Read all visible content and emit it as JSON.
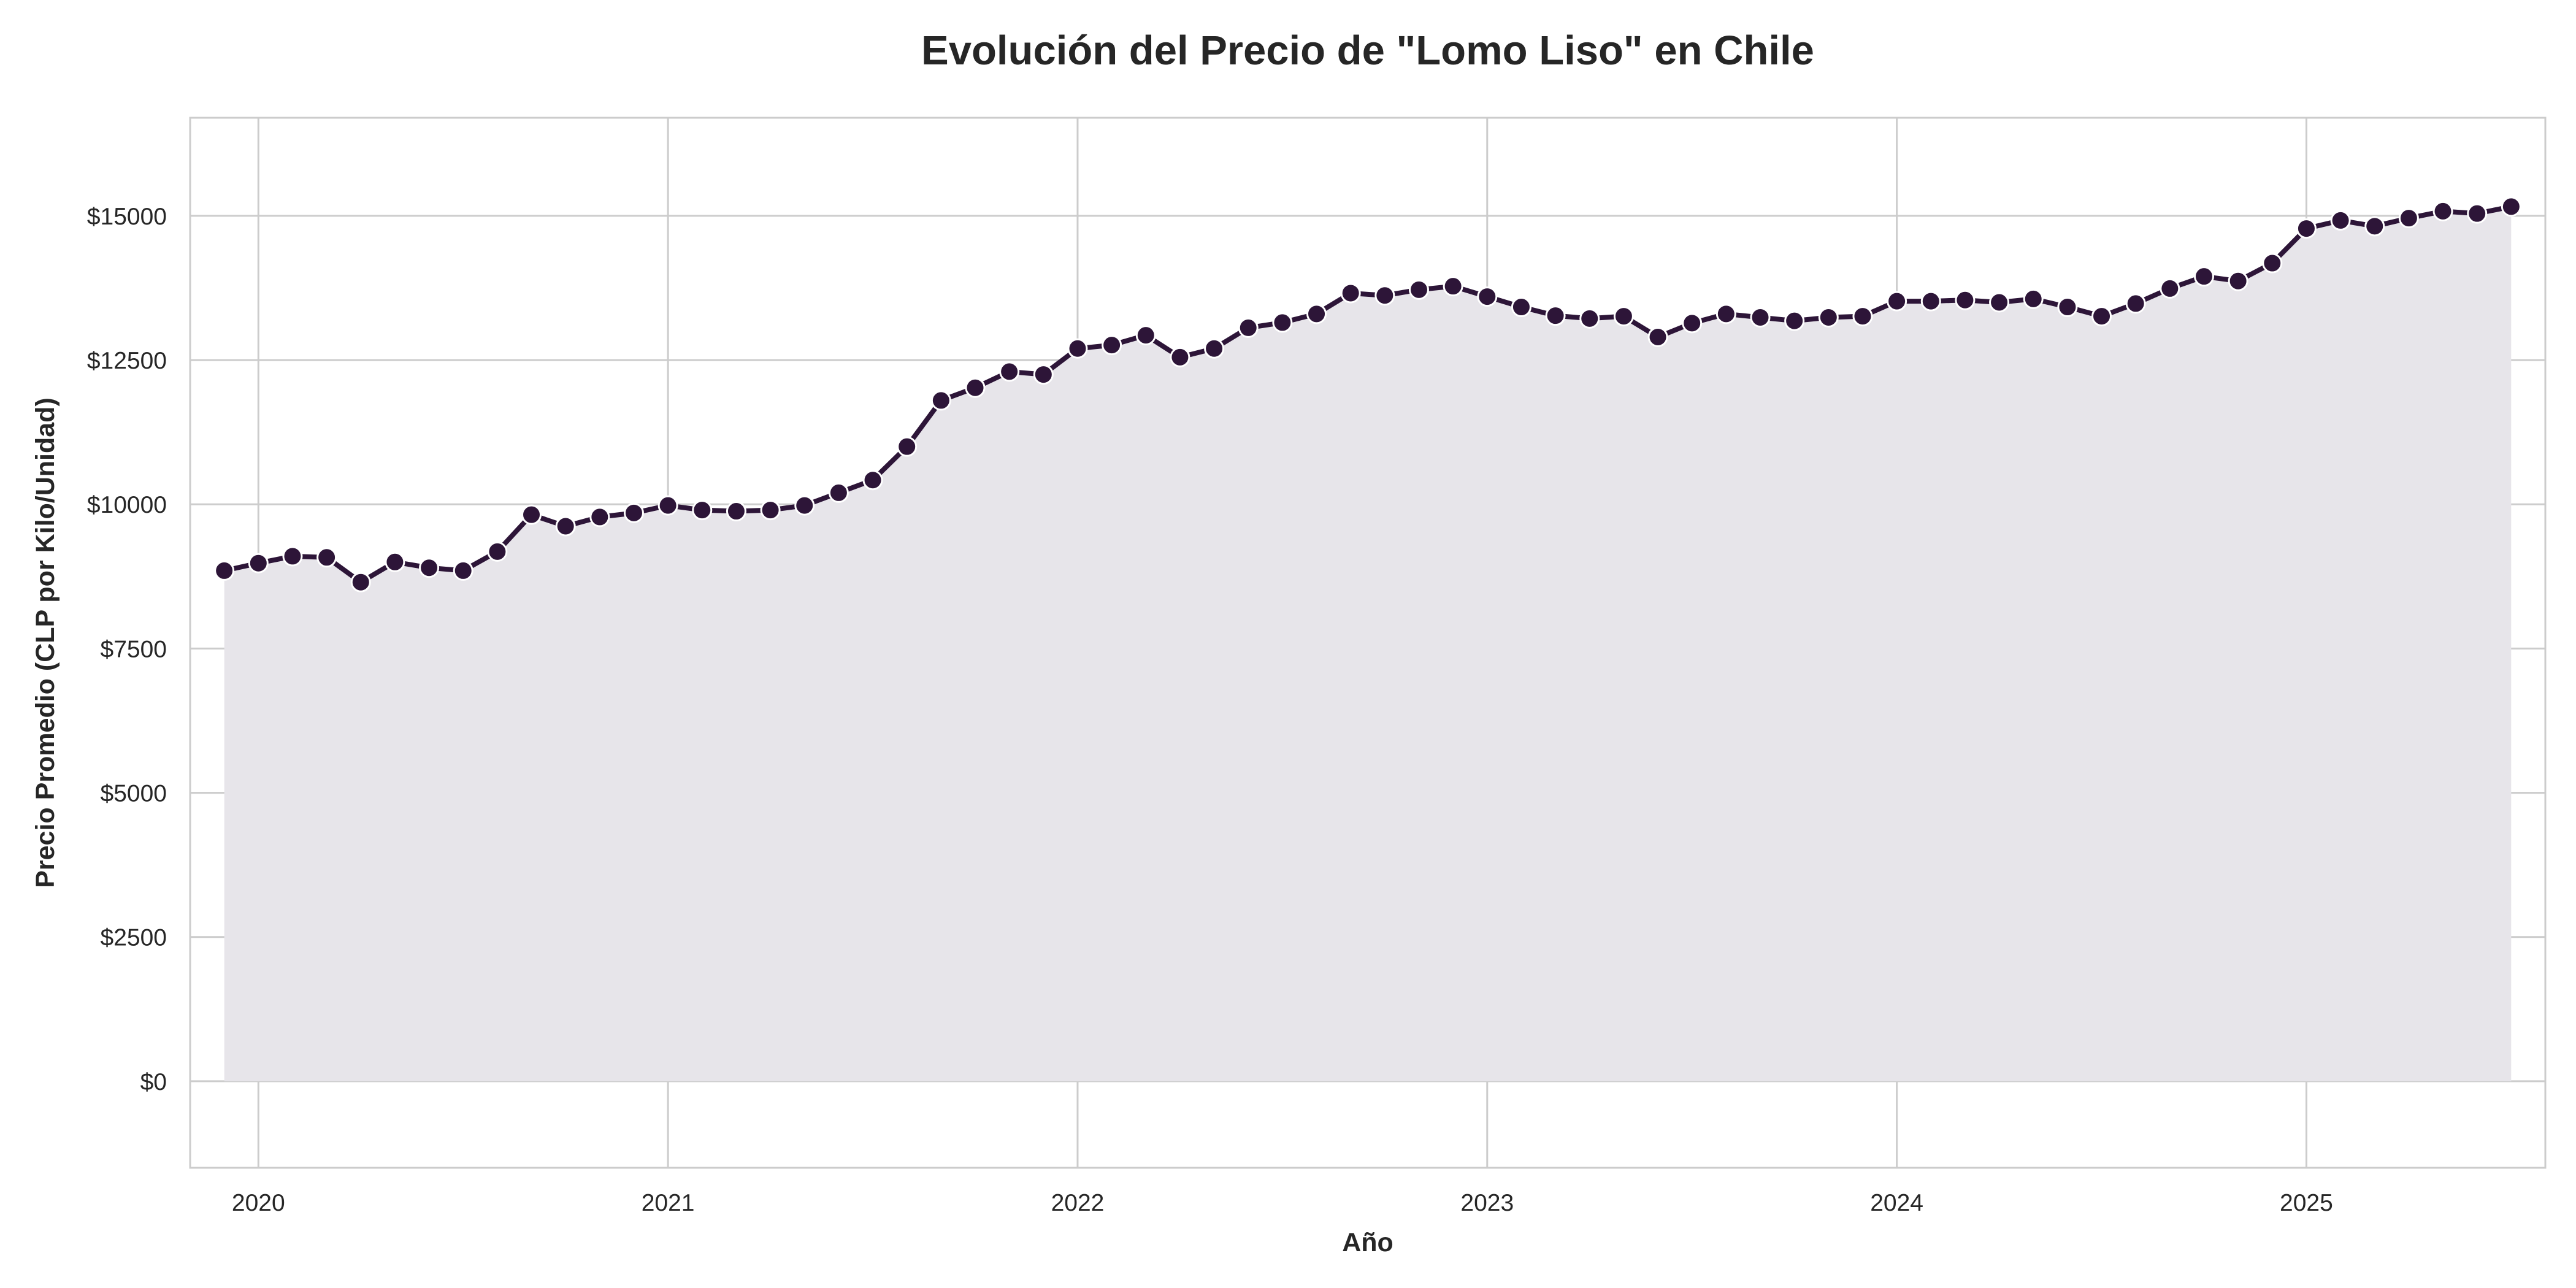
{
  "chart_data": {
    "type": "line",
    "title": "Evolución del Precio de \"Lomo Liso\" en Chile",
    "xlabel": "Año",
    "ylabel": "Precio Promedio (CLP por Kilo/Unidad)",
    "x_ticks": [
      "2020",
      "2021",
      "2022",
      "2023",
      "2024",
      "2025"
    ],
    "y_ticks": [
      "$0",
      "$2500",
      "$5000",
      "$7500",
      "$10000",
      "$12500",
      "$15000"
    ],
    "ylim": [
      -1500,
      16700
    ],
    "xlim": [
      "2019-11",
      "2025-08"
    ],
    "grid": true,
    "area_fill": true,
    "colors": {
      "line": "#2d1538",
      "marker": "#2d1538",
      "fill": "#e7e5ea",
      "grid": "#cccccc",
      "frame": "#cccccc"
    },
    "series": [
      {
        "x": [
          "2019-12",
          "2020-01",
          "2020-02",
          "2020-03",
          "2020-04",
          "2020-05",
          "2020-06",
          "2020-07",
          "2020-08",
          "2020-09",
          "2020-10",
          "2020-11",
          "2020-12",
          "2021-01",
          "2021-02",
          "2021-03",
          "2021-04",
          "2021-05",
          "2021-06",
          "2021-07",
          "2021-08",
          "2021-09",
          "2021-10",
          "2021-11",
          "2021-12",
          "2022-01",
          "2022-02",
          "2022-03",
          "2022-04",
          "2022-05",
          "2022-06",
          "2022-07",
          "2022-08",
          "2022-09",
          "2022-10",
          "2022-11",
          "2022-12",
          "2023-01",
          "2023-02",
          "2023-03",
          "2023-04",
          "2023-05",
          "2023-06",
          "2023-07",
          "2023-08",
          "2023-09",
          "2023-10",
          "2023-11",
          "2023-12",
          "2024-01",
          "2024-02",
          "2024-03",
          "2024-04",
          "2024-05",
          "2024-06",
          "2024-07",
          "2024-08",
          "2024-09",
          "2024-10",
          "2024-11",
          "2024-12",
          "2025-01",
          "2025-02",
          "2025-03",
          "2025-04",
          "2025-05",
          "2025-06",
          "2025-07"
        ],
        "values": [
          8850,
          8980,
          9100,
          9080,
          8650,
          9000,
          8900,
          8850,
          9180,
          9820,
          9620,
          9780,
          9850,
          9980,
          9900,
          9880,
          9900,
          9980,
          10200,
          10420,
          11000,
          11800,
          12020,
          12300,
          12250,
          12700,
          12760,
          12930,
          12550,
          12700,
          13060,
          13150,
          13300,
          13660,
          13620,
          13720,
          13780,
          13600,
          13420,
          13270,
          13220,
          13260,
          12900,
          13140,
          13300,
          13240,
          13180,
          13240,
          13260,
          13520,
          13520,
          13540,
          13500,
          13560,
          13420,
          13260,
          13480,
          13740,
          13950,
          13870,
          14180,
          14780,
          14920,
          14820,
          14960,
          15080,
          15040,
          15160
        ]
      }
    ]
  }
}
